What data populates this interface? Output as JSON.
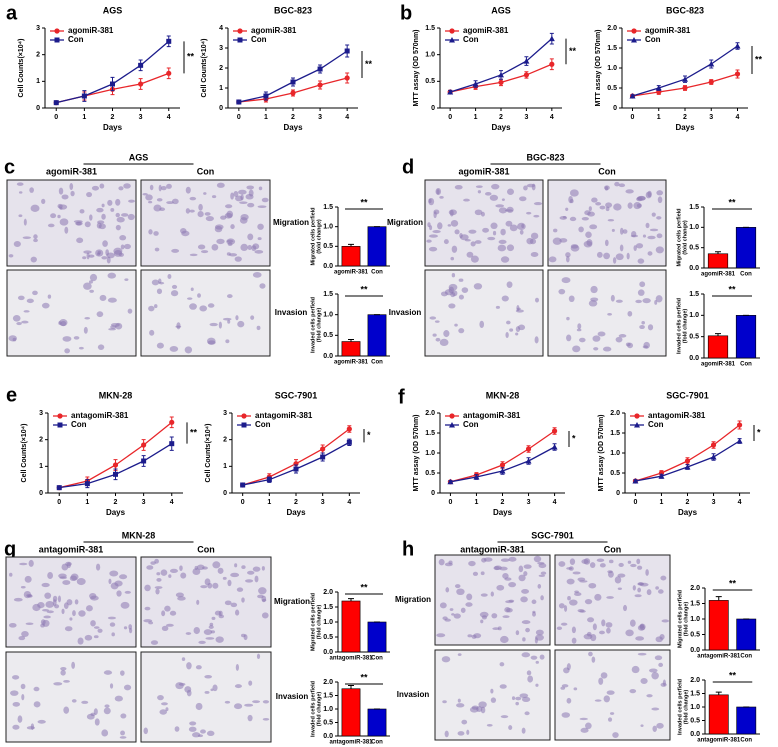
{
  "chart_data": [
    {
      "type": "line",
      "title": "AGS",
      "xlabel": "Days",
      "ylabel": "Cell Counts(×10⁴)",
      "x": [
        0,
        1,
        2,
        3,
        4
      ],
      "xlim": [
        -0.4,
        4.4
      ],
      "xticks": [
        0,
        1,
        2,
        3,
        4
      ],
      "ylim": [
        0,
        3
      ],
      "yticks": [
        0,
        1,
        2,
        3
      ],
      "significance": "**",
      "series": [
        {
          "name": "agomiR-381",
          "color": "#e8262a",
          "marker": "circle",
          "values": [
            0.2,
            0.45,
            0.7,
            0.9,
            1.3
          ],
          "errors": [
            0.05,
            0.15,
            0.2,
            0.2,
            0.2
          ]
        },
        {
          "name": "Con",
          "color": "#1c1c8c",
          "marker": "square",
          "values": [
            0.2,
            0.45,
            0.9,
            1.6,
            2.5
          ],
          "errors": [
            0.05,
            0.2,
            0.25,
            0.2,
            0.2
          ]
        }
      ]
    },
    {
      "type": "line",
      "title": "BGC-823",
      "xlabel": "Days",
      "ylabel": "Cell Counts(×10⁴)",
      "x": [
        0,
        1,
        2,
        3,
        4
      ],
      "xlim": [
        -0.4,
        4.4
      ],
      "xticks": [
        0,
        1,
        2,
        3,
        4
      ],
      "ylim": [
        0,
        4
      ],
      "yticks": [
        0,
        1,
        2,
        3,
        4
      ],
      "significance": "**",
      "series": [
        {
          "name": "agomiR-381",
          "color": "#e8262a",
          "marker": "circle",
          "values": [
            0.3,
            0.45,
            0.75,
            1.15,
            1.5
          ],
          "errors": [
            0.05,
            0.15,
            0.15,
            0.2,
            0.25
          ]
        },
        {
          "name": "Con",
          "color": "#1c1c8c",
          "marker": "square",
          "values": [
            0.3,
            0.6,
            1.3,
            1.95,
            2.85
          ],
          "errors": [
            0.05,
            0.2,
            0.2,
            0.2,
            0.3
          ]
        }
      ]
    },
    {
      "type": "line",
      "title": "AGS",
      "xlabel": "Days",
      "ylabel": "MTT assay (OD 570nm)",
      "x": [
        0,
        1,
        2,
        3,
        4
      ],
      "xlim": [
        -0.4,
        4.4
      ],
      "xticks": [
        0,
        1,
        2,
        3,
        4
      ],
      "ylim": [
        0,
        1.5
      ],
      "yticks": [
        0,
        0.5,
        {
          "value": 1,
          "label": "1.0"
        },
        1.5
      ],
      "significance": "**",
      "series": [
        {
          "name": "agomiR-381",
          "color": "#e8262a",
          "marker": "circle",
          "values": [
            0.3,
            0.4,
            0.48,
            0.62,
            0.82
          ],
          "errors": [
            0.03,
            0.05,
            0.06,
            0.06,
            0.1
          ]
        },
        {
          "name": "Con",
          "color": "#1c1c8c",
          "marker": "triangle",
          "values": [
            0.3,
            0.45,
            0.62,
            0.88,
            1.3
          ],
          "errors": [
            0.03,
            0.06,
            0.08,
            0.08,
            0.1
          ]
        }
      ]
    },
    {
      "type": "line",
      "title": "BGC-823",
      "xlabel": "Days",
      "ylabel": "MTT assay (OD 570nm)",
      "x": [
        0,
        1,
        2,
        3,
        4
      ],
      "xlim": [
        -0.4,
        4.4
      ],
      "xticks": [
        0,
        1,
        2,
        3,
        4
      ],
      "ylim": [
        0,
        2
      ],
      "yticks": [
        0,
        0.5,
        {
          "value": 1,
          "label": "1.0"
        },
        1.5,
        {
          "value": 2,
          "label": "2.0"
        }
      ],
      "significance": "**",
      "series": [
        {
          "name": "agomiR-381",
          "color": "#e8262a",
          "marker": "circle",
          "values": [
            0.3,
            0.4,
            0.5,
            0.65,
            0.85
          ],
          "errors": [
            0.03,
            0.06,
            0.06,
            0.06,
            0.1
          ]
        },
        {
          "name": "Con",
          "color": "#1c1c8c",
          "marker": "triangle",
          "values": [
            0.3,
            0.5,
            0.72,
            1.1,
            1.55
          ],
          "errors": [
            0.03,
            0.06,
            0.08,
            0.1,
            0.08
          ]
        }
      ]
    },
    {
      "type": "bar",
      "ylabel": [
        "Migrated cells perfield",
        "(fold change)"
      ],
      "categories": [
        "agomiR-381",
        "Con"
      ],
      "values": [
        0.5,
        1.0
      ],
      "errors": [
        0.05,
        0
      ],
      "colors": [
        "#ff0000",
        "#0000cc"
      ],
      "ylim": [
        0,
        1.5
      ],
      "yticks": [
        {
          "value": 0,
          "label": "0.0"
        },
        0.5,
        {
          "value": 1,
          "label": "1.0"
        },
        1.5
      ],
      "significance": "**"
    },
    {
      "type": "bar",
      "ylabel": [
        "Invaded cells perfield",
        "(fold change)"
      ],
      "categories": [
        "agomiR-381",
        "Con"
      ],
      "values": [
        0.35,
        1.0
      ],
      "errors": [
        0.05,
        0
      ],
      "colors": [
        "#ff0000",
        "#0000cc"
      ],
      "ylim": [
        0,
        1.5
      ],
      "yticks": [
        {
          "value": 0,
          "label": "0.0"
        },
        0.5,
        {
          "value": 1,
          "label": "1.0"
        },
        1.5
      ],
      "significance": "**"
    },
    {
      "type": "bar",
      "ylabel": [
        "Migrated cells perfield",
        "(fold change)"
      ],
      "categories": [
        "agomiR-381",
        "Con"
      ],
      "values": [
        0.35,
        1.0
      ],
      "errors": [
        0.05,
        0
      ],
      "colors": [
        "#ff0000",
        "#0000cc"
      ],
      "ylim": [
        0,
        1.5
      ],
      "yticks": [
        {
          "value": 0,
          "label": "0.0"
        },
        0.5,
        {
          "value": 1,
          "label": "1.0"
        },
        1.5
      ],
      "significance": "**"
    },
    {
      "type": "bar",
      "ylabel": [
        "Invaded cells perfield",
        "(fold change)"
      ],
      "categories": [
        "agomiR-381",
        "Con"
      ],
      "values": [
        0.52,
        1.0
      ],
      "errors": [
        0.05,
        0
      ],
      "colors": [
        "#ff0000",
        "#0000cc"
      ],
      "ylim": [
        0,
        1.5
      ],
      "yticks": [
        {
          "value": 0,
          "label": "0.0"
        },
        0.5,
        {
          "value": 1,
          "label": "1.0"
        },
        1.5
      ],
      "significance": "**"
    },
    {
      "type": "line",
      "title": "MKN-28",
      "xlabel": "Days",
      "ylabel": "Cell Counts(×10⁴)",
      "x": [
        0,
        1,
        2,
        3,
        4
      ],
      "xlim": [
        -0.4,
        4.4
      ],
      "xticks": [
        0,
        1,
        2,
        3,
        4
      ],
      "ylim": [
        0,
        3
      ],
      "yticks": [
        0,
        1,
        2,
        3
      ],
      "significance": "**",
      "series": [
        {
          "name": "antagomiR-381",
          "color": "#e8262a",
          "marker": "circle",
          "values": [
            0.2,
            0.45,
            1.05,
            1.8,
            2.65
          ],
          "errors": [
            0.05,
            0.15,
            0.2,
            0.2,
            0.2
          ]
        },
        {
          "name": "Con",
          "color": "#1c1c8c",
          "marker": "square",
          "values": [
            0.2,
            0.35,
            0.7,
            1.2,
            1.85
          ],
          "errors": [
            0.05,
            0.15,
            0.2,
            0.2,
            0.25
          ]
        }
      ]
    },
    {
      "type": "line",
      "title": "SGC-7901",
      "xlabel": "Days",
      "ylabel": "Cell Counts(×10⁴)",
      "x": [
        0,
        1,
        2,
        3,
        4
      ],
      "xlim": [
        -0.4,
        4.4
      ],
      "xticks": [
        0,
        1,
        2,
        3,
        4
      ],
      "ylim": [
        0,
        3
      ],
      "yticks": [
        0,
        1,
        2,
        3
      ],
      "significance": "*",
      "series": [
        {
          "name": "antagomiR-381",
          "color": "#e8262a",
          "marker": "circle",
          "values": [
            0.3,
            0.6,
            1.1,
            1.65,
            2.4
          ],
          "errors": [
            0.03,
            0.12,
            0.15,
            0.15,
            0.12
          ]
        },
        {
          "name": "Con",
          "color": "#1c1c8c",
          "marker": "square",
          "values": [
            0.3,
            0.5,
            0.9,
            1.35,
            1.9
          ],
          "errors": [
            0.03,
            0.1,
            0.15,
            0.15,
            0.12
          ]
        }
      ]
    },
    {
      "type": "line",
      "title": "MKN-28",
      "xlabel": "Days",
      "ylabel": "MTT assay (OD 570nm)",
      "x": [
        0,
        1,
        2,
        3,
        4
      ],
      "xlim": [
        -0.4,
        4.4
      ],
      "xticks": [
        0,
        1,
        2,
        3,
        4
      ],
      "ylim": [
        0,
        2
      ],
      "yticks": [
        0,
        0.5,
        {
          "value": 1,
          "label": "1.0"
        },
        1.5,
        {
          "value": 2,
          "label": "2.0"
        }
      ],
      "significance": "*",
      "series": [
        {
          "name": "antagomiR-381",
          "color": "#e8262a",
          "marker": "circle",
          "values": [
            0.28,
            0.45,
            0.7,
            1.1,
            1.55
          ],
          "errors": [
            0.03,
            0.06,
            0.08,
            0.08,
            0.08
          ]
        },
        {
          "name": "Con",
          "color": "#1c1c8c",
          "marker": "triangle",
          "values": [
            0.28,
            0.4,
            0.55,
            0.8,
            1.15
          ],
          "errors": [
            0.03,
            0.06,
            0.08,
            0.08,
            0.08
          ]
        }
      ]
    },
    {
      "type": "line",
      "title": "SGC-7901",
      "xlabel": "Days",
      "ylabel": "MTT assay (OD 570nm)",
      "x": [
        0,
        1,
        2,
        3,
        4
      ],
      "xlim": [
        -0.4,
        4.4
      ],
      "xticks": [
        0,
        1,
        2,
        3,
        4
      ],
      "ylim": [
        0,
        2
      ],
      "yticks": [
        0,
        0.5,
        {
          "value": 1,
          "label": "1.0"
        },
        1.5,
        {
          "value": 2,
          "label": "2.0"
        }
      ],
      "significance": "*",
      "series": [
        {
          "name": "antagomiR-381",
          "color": "#e8262a",
          "marker": "circle",
          "values": [
            0.3,
            0.5,
            0.8,
            1.2,
            1.7
          ],
          "errors": [
            0.03,
            0.06,
            0.08,
            0.08,
            0.1
          ]
        },
        {
          "name": "Con",
          "color": "#1c1c8c",
          "marker": "triangle",
          "values": [
            0.3,
            0.42,
            0.65,
            0.9,
            1.3
          ],
          "errors": [
            0.03,
            0.05,
            0.06,
            0.08,
            0.06
          ]
        }
      ]
    },
    {
      "type": "bar",
      "ylabel": [
        "Migrated cells perfield",
        "(fold change)"
      ],
      "categories": [
        "antagomiR-381",
        "Con"
      ],
      "values": [
        1.7,
        1.0
      ],
      "errors": [
        0.08,
        0
      ],
      "colors": [
        "#ff0000",
        "#0000cc"
      ],
      "ylim": [
        0,
        2
      ],
      "yticks": [
        {
          "value": 0,
          "label": "0.0"
        },
        0.5,
        {
          "value": 1,
          "label": "1.0"
        },
        1.5,
        {
          "value": 2,
          "label": "2.0"
        }
      ],
      "significance": "**"
    },
    {
      "type": "bar",
      "ylabel": [
        "Invaded cells perfield",
        "(fold change)"
      ],
      "categories": [
        "antagomiR-381",
        "Con"
      ],
      "values": [
        1.75,
        1.0
      ],
      "errors": [
        0.12,
        0
      ],
      "colors": [
        "#ff0000",
        "#0000cc"
      ],
      "ylim": [
        0,
        2
      ],
      "yticks": [
        {
          "value": 0,
          "label": "0.0"
        },
        0.5,
        {
          "value": 1,
          "label": "1.0"
        },
        1.5,
        {
          "value": 2,
          "label": "2.0"
        }
      ],
      "significance": "**"
    },
    {
      "type": "bar",
      "ylabel": [
        "Migrated cells perfield",
        "(fold change)"
      ],
      "categories": [
        "antagomiR-381",
        "Con"
      ],
      "values": [
        1.6,
        1.0
      ],
      "errors": [
        0.12,
        0
      ],
      "colors": [
        "#ff0000",
        "#0000cc"
      ],
      "ylim": [
        0,
        2
      ],
      "yticks": [
        {
          "value": 0,
          "label": "0.0"
        },
        0.5,
        {
          "value": 1,
          "label": "1.0"
        },
        1.5,
        {
          "value": 2,
          "label": "2.0"
        }
      ],
      "significance": "**"
    },
    {
      "type": "bar",
      "ylabel": [
        "Invaded cells perfield",
        "(fold change)"
      ],
      "categories": [
        "antagomiR-381",
        "Con"
      ],
      "values": [
        1.45,
        1.0
      ],
      "errors": [
        0.1,
        0
      ],
      "colors": [
        "#ff0000",
        "#0000cc"
      ],
      "ylim": [
        0,
        2
      ],
      "yticks": [
        {
          "value": 0,
          "label": "0.0"
        },
        0.5,
        {
          "value": 1,
          "label": "1.0"
        },
        1.5,
        {
          "value": 2,
          "label": "2.0"
        }
      ],
      "significance": "**"
    }
  ],
  "panels": [
    {
      "letter": "a"
    },
    {
      "letter": "b"
    },
    {
      "letter": "c",
      "title": "AGS",
      "columns": [
        "agomiR-381",
        "Con"
      ],
      "rows": [
        "Migration",
        "Invasion"
      ]
    },
    {
      "letter": "d",
      "title": "BGC-823",
      "columns": [
        "agomiR-381",
        "Con"
      ],
      "rows": [
        "Migration",
        "Invasion"
      ]
    },
    {
      "letter": "e"
    },
    {
      "letter": "f"
    },
    {
      "letter": "g",
      "title": "MKN-28",
      "columns": [
        "antagomiR-381",
        "Con"
      ],
      "rows": [
        "Migration",
        "Invasion"
      ]
    },
    {
      "letter": "h",
      "title": "SGC-7901",
      "columns": [
        "antagomiR-381",
        "Con"
      ],
      "rows": [
        "Migration",
        "Invasion"
      ]
    }
  ]
}
